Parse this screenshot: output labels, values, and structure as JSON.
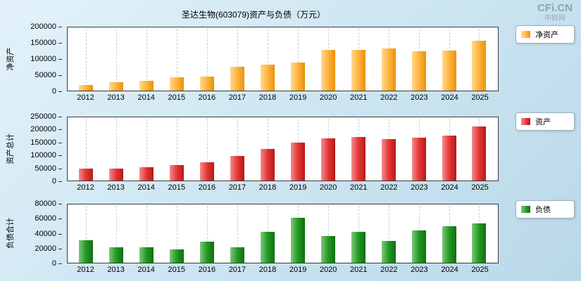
{
  "page": {
    "title": "圣达生物(603079)资产与负债（万元）",
    "logo": "CFi.CN",
    "logo_sub": "中财网"
  },
  "chart_data": [
    {
      "type": "bar",
      "title": "净资产",
      "ylabel": "净资产",
      "legend": "净资产",
      "color": "#FFB33E",
      "color_light": "#FFD98C",
      "color_dark": "#E8920A",
      "categories": [
        "2012",
        "2013",
        "2014",
        "2015",
        "2016",
        "2017",
        "2018",
        "2019",
        "2020",
        "2021",
        "2022",
        "2023",
        "2024",
        "2025"
      ],
      "values": [
        18000,
        27000,
        32000,
        43000,
        45000,
        75000,
        82000,
        90000,
        130000,
        130000,
        133000,
        125000,
        127000,
        157000
      ],
      "ylim": [
        0,
        200000
      ],
      "yticks": [
        0,
        50000,
        100000,
        150000,
        200000
      ],
      "grid": "dashed-vertical",
      "legend_position": "right"
    },
    {
      "type": "bar",
      "title": "资产总计",
      "ylabel": "资产总计",
      "legend": "资产",
      "color": "#E63535",
      "color_light": "#F48C8C",
      "color_dark": "#B51A1A",
      "categories": [
        "2012",
        "2013",
        "2014",
        "2015",
        "2016",
        "2017",
        "2018",
        "2019",
        "2020",
        "2021",
        "2022",
        "2023",
        "2024",
        "2025"
      ],
      "values": [
        48000,
        48000,
        53000,
        62000,
        72000,
        97000,
        125000,
        150000,
        168000,
        172000,
        165000,
        170000,
        178000,
        213000
      ],
      "ylim": [
        0,
        250000
      ],
      "yticks": [
        0,
        50000,
        100000,
        150000,
        200000,
        250000
      ],
      "grid": "dashed-vertical",
      "legend_position": "right"
    },
    {
      "type": "bar",
      "title": "负债合计",
      "ylabel": "负债合计",
      "legend": "负债",
      "color": "#229922",
      "color_light": "#7CC87C",
      "color_dark": "#107010",
      "categories": [
        "2012",
        "2013",
        "2014",
        "2015",
        "2016",
        "2017",
        "2018",
        "2019",
        "2020",
        "2021",
        "2022",
        "2023",
        "2024",
        "2025"
      ],
      "values": [
        31000,
        21000,
        21000,
        18000,
        29000,
        21000,
        42000,
        62000,
        37000,
        42000,
        30000,
        44000,
        50000,
        54000
      ],
      "ylim": [
        0,
        80000
      ],
      "yticks": [
        0,
        20000,
        40000,
        60000,
        80000
      ],
      "grid": "dashed-vertical",
      "legend_position": "right"
    }
  ]
}
